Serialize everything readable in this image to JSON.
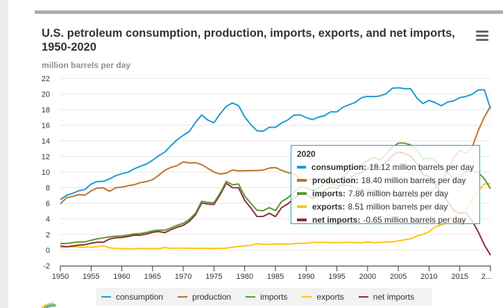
{
  "page": {
    "menu_icon": "hamburger-menu-icon"
  },
  "chart_data": {
    "type": "line",
    "title": "U.S. petroleum consumption, production, imports, exports, and net imports, 1950-2020",
    "ylabel": "million barrels per day",
    "xlabel": "",
    "ylim": [
      -2,
      22
    ],
    "yticks": [
      22,
      20,
      18,
      16,
      14,
      12,
      10,
      8,
      6,
      4,
      2,
      0,
      -2
    ],
    "xlim": [
      1950,
      2020
    ],
    "xticks": [
      "1950",
      "1955",
      "1960",
      "1965",
      "1970",
      "1975",
      "1980",
      "1985",
      "1990",
      "1995",
      "2000",
      "2005",
      "2010",
      "2015",
      "2..."
    ],
    "grid": true,
    "legend_position": "bottom",
    "x": [
      1950,
      1951,
      1952,
      1953,
      1954,
      1955,
      1956,
      1957,
      1958,
      1959,
      1960,
      1961,
      1962,
      1963,
      1964,
      1965,
      1966,
      1967,
      1968,
      1969,
      1970,
      1971,
      1972,
      1973,
      1974,
      1975,
      1976,
      1977,
      1978,
      1979,
      1980,
      1981,
      1982,
      1983,
      1984,
      1985,
      1986,
      1987,
      1988,
      1989,
      1990,
      1991,
      1992,
      1993,
      1994,
      1995,
      1996,
      1997,
      1998,
      1999,
      2000,
      2001,
      2002,
      2003,
      2004,
      2005,
      2006,
      2007,
      2008,
      2009,
      2010,
      2011,
      2012,
      2013,
      2014,
      2015,
      2016,
      2017,
      2018,
      2019,
      2020
    ],
    "series": [
      {
        "name": "consumption",
        "color": "#1d9ad6",
        "values": [
          6.46,
          7.02,
          7.27,
          7.6,
          7.76,
          8.46,
          8.78,
          8.81,
          9.12,
          9.53,
          9.8,
          9.98,
          10.4,
          10.74,
          11.02,
          11.51,
          12.08,
          12.56,
          13.39,
          14.14,
          14.7,
          15.21,
          16.37,
          17.31,
          16.65,
          16.32,
          17.46,
          18.43,
          18.85,
          18.51,
          17.06,
          16.06,
          15.3,
          15.23,
          15.73,
          15.73,
          16.28,
          16.67,
          17.28,
          17.33,
          16.99,
          16.71,
          17.03,
          17.24,
          17.72,
          17.72,
          18.31,
          18.62,
          18.92,
          19.52,
          19.7,
          19.65,
          19.76,
          20.03,
          20.73,
          20.8,
          20.69,
          20.68,
          19.5,
          18.77,
          19.18,
          18.89,
          18.49,
          18.97,
          19.11,
          19.53,
          19.69,
          19.96,
          20.51,
          20.54,
          18.12
        ]
      },
      {
        "name": "production",
        "color": "#bd732a",
        "values": [
          5.91,
          6.72,
          6.87,
          7.11,
          7.03,
          7.58,
          7.95,
          7.98,
          7.52,
          7.99,
          8.06,
          8.24,
          8.36,
          8.64,
          8.77,
          9.01,
          9.58,
          10.22,
          10.6,
          10.83,
          11.3,
          11.16,
          11.19,
          10.95,
          10.46,
          10.01,
          9.74,
          9.86,
          10.27,
          10.14,
          10.17,
          10.18,
          10.2,
          10.25,
          10.51,
          10.58,
          10.23,
          9.94,
          9.77,
          9.16,
          8.91,
          9.08,
          8.87,
          8.59,
          8.39,
          8.32,
          8.3,
          8.27,
          8.01,
          7.73,
          7.73,
          7.67,
          7.63,
          7.4,
          7.23,
          6.9,
          6.84,
          6.86,
          6.78,
          7.27,
          7.56,
          7.87,
          8.92,
          10.07,
          11.8,
          12.77,
          12.37,
          13.15,
          15.31,
          17.05,
          18.4
        ]
      },
      {
        "name": "imports",
        "color": "#5d9732",
        "values": [
          0.85,
          0.84,
          0.95,
          1.03,
          1.05,
          1.25,
          1.44,
          1.57,
          1.7,
          1.78,
          1.81,
          1.92,
          2.08,
          2.12,
          2.26,
          2.47,
          2.57,
          2.54,
          2.84,
          3.17,
          3.42,
          3.93,
          4.74,
          6.26,
          6.11,
          6.06,
          7.31,
          8.81,
          8.36,
          8.46,
          6.91,
          6.0,
          5.11,
          5.05,
          5.44,
          5.07,
          6.22,
          6.68,
          7.4,
          8.06,
          8.02,
          7.63,
          7.89,
          8.62,
          9.0,
          8.83,
          9.48,
          10.16,
          10.71,
          10.85,
          11.46,
          11.87,
          11.53,
          12.26,
          13.15,
          13.71,
          13.71,
          13.47,
          12.92,
          11.69,
          11.79,
          11.44,
          10.6,
          9.86,
          9.24,
          9.45,
          10.06,
          10.14,
          9.94,
          9.14,
          7.86
        ]
      },
      {
        "name": "exports",
        "color": "#ffc60b",
        "values": [
          0.31,
          0.42,
          0.43,
          0.4,
          0.36,
          0.37,
          0.43,
          0.57,
          0.28,
          0.21,
          0.2,
          0.17,
          0.17,
          0.21,
          0.2,
          0.19,
          0.2,
          0.31,
          0.23,
          0.23,
          0.26,
          0.22,
          0.22,
          0.23,
          0.22,
          0.21,
          0.22,
          0.24,
          0.36,
          0.47,
          0.54,
          0.6,
          0.82,
          0.74,
          0.72,
          0.78,
          0.79,
          0.76,
          0.82,
          0.86,
          0.86,
          1.0,
          0.95,
          1.0,
          0.94,
          0.95,
          0.98,
          1.0,
          0.94,
          0.94,
          1.04,
          0.97,
          0.98,
          1.03,
          1.05,
          1.17,
          1.32,
          1.43,
          1.8,
          2.02,
          2.35,
          2.99,
          3.21,
          3.62,
          4.18,
          4.74,
          5.26,
          6.38,
          7.6,
          8.47,
          8.51
        ]
      },
      {
        "name": "net imports",
        "color": "#8e2a3a",
        "values": [
          0.55,
          0.42,
          0.52,
          0.63,
          0.69,
          0.88,
          1.01,
          1.0,
          1.42,
          1.57,
          1.61,
          1.74,
          1.91,
          1.91,
          2.06,
          2.28,
          2.37,
          2.23,
          2.61,
          2.93,
          3.16,
          3.7,
          4.52,
          6.03,
          5.89,
          5.85,
          7.09,
          8.56,
          8.0,
          7.99,
          6.36,
          5.4,
          4.3,
          4.31,
          4.72,
          4.29,
          5.44,
          5.91,
          6.59,
          7.2,
          7.16,
          6.63,
          6.94,
          7.62,
          8.05,
          7.89,
          8.5,
          9.16,
          9.76,
          9.91,
          10.42,
          10.9,
          10.55,
          11.24,
          12.1,
          12.55,
          12.39,
          12.04,
          11.11,
          9.67,
          9.44,
          8.45,
          7.39,
          6.24,
          5.07,
          4.71,
          4.8,
          3.77,
          2.34,
          0.67,
          -0.65
        ]
      }
    ],
    "tooltip": {
      "year": "2020",
      "unit_suffix": "million barrels per day",
      "rows": [
        {
          "name": "consumption",
          "label": "consumption:",
          "value": "18.12",
          "color": "#1d9ad6"
        },
        {
          "name": "production",
          "label": "production:",
          "value": "18.40",
          "color": "#bd732a"
        },
        {
          "name": "imports",
          "label": "imports:",
          "value": "7.86",
          "color": "#5d9732"
        },
        {
          "name": "exports",
          "label": "exports:",
          "value": "8.51",
          "color": "#ffc60b"
        },
        {
          "name": "net imports",
          "label": "net imports:",
          "value": "-0.65",
          "color": "#8e2a3a"
        }
      ]
    },
    "legend": [
      {
        "label": "consumption",
        "color": "#1d9ad6"
      },
      {
        "label": "production",
        "color": "#bd732a"
      },
      {
        "label": "imports",
        "color": "#5d9732"
      },
      {
        "label": "exports",
        "color": "#ffc60b"
      },
      {
        "label": "net imports",
        "color": "#8e2a3a"
      }
    ]
  }
}
